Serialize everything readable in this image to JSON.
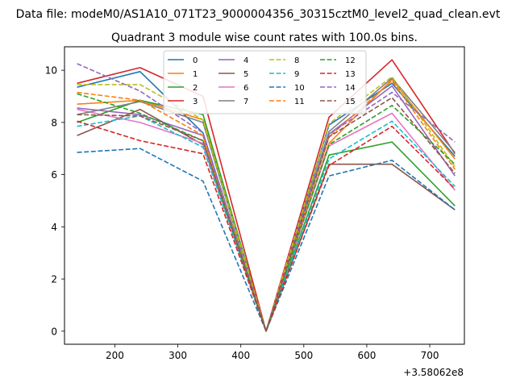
{
  "chart_data": {
    "type": "line",
    "suptitle": "Data file: modeM0/AS1A10_071T23_9000004356_30315cztM0_level2_quad_clean.evt",
    "title": "Quadrant 3 module wise count rates with 100.0s bins.",
    "xlabel": "",
    "ylabel": "",
    "x_offset_label": "+3.58062e8",
    "xlim": [
      120,
      755
    ],
    "ylim": [
      -0.5,
      10.9
    ],
    "xticks": [
      200,
      300,
      400,
      500,
      600,
      700
    ],
    "yticks": [
      0,
      2,
      4,
      6,
      8,
      10
    ],
    "x": [
      140,
      240,
      340,
      440,
      540,
      640,
      740
    ],
    "series": [
      {
        "name": "0",
        "color": "#1f77b4",
        "dash": false,
        "values": [
          9.35,
          9.95,
          7.6,
          0.0,
          7.9,
          9.5,
          6.7
        ]
      },
      {
        "name": "1",
        "color": "#ff7f0e",
        "dash": false,
        "values": [
          8.7,
          8.85,
          8.1,
          0.0,
          7.2,
          9.65,
          6.6
        ]
      },
      {
        "name": "2",
        "color": "#2ca02c",
        "dash": false,
        "values": [
          8.0,
          8.85,
          8.3,
          0.0,
          6.75,
          7.25,
          4.8
        ]
      },
      {
        "name": "3",
        "color": "#d62728",
        "dash": false,
        "values": [
          9.5,
          10.1,
          9.0,
          0.0,
          8.2,
          10.4,
          6.8
        ]
      },
      {
        "name": "4",
        "color": "#9467bd",
        "dash": false,
        "values": [
          8.55,
          8.3,
          7.5,
          0.0,
          7.55,
          9.4,
          5.95
        ]
      },
      {
        "name": "5",
        "color": "#8c564b",
        "dash": false,
        "values": [
          7.5,
          8.5,
          7.15,
          0.0,
          6.4,
          6.4,
          4.65
        ]
      },
      {
        "name": "6",
        "color": "#e377c2",
        "dash": false,
        "values": [
          8.5,
          8.0,
          7.2,
          0.0,
          7.1,
          8.35,
          5.4
        ]
      },
      {
        "name": "7",
        "color": "#7f7f7f",
        "dash": false,
        "values": [
          8.3,
          8.8,
          8.0,
          0.0,
          7.65,
          9.7,
          6.85
        ]
      },
      {
        "name": "8",
        "color": "#bcbd22",
        "dash": true,
        "values": [
          9.45,
          9.45,
          8.1,
          0.0,
          7.95,
          9.75,
          6.3
        ]
      },
      {
        "name": "9",
        "color": "#17becf",
        "dash": true,
        "values": [
          7.85,
          8.25,
          7.05,
          0.0,
          6.6,
          8.05,
          5.55
        ]
      },
      {
        "name": "10",
        "color": "#1f77b4",
        "dash": true,
        "values": [
          6.85,
          7.0,
          5.75,
          0.0,
          5.95,
          6.55,
          4.65
        ]
      },
      {
        "name": "11",
        "color": "#ff7f0e",
        "dash": true,
        "values": [
          9.15,
          8.85,
          7.5,
          0.0,
          7.45,
          9.6,
          6.2
        ]
      },
      {
        "name": "12",
        "color": "#2ca02c",
        "dash": true,
        "values": [
          9.1,
          8.35,
          7.3,
          0.0,
          7.15,
          8.65,
          6.4
        ]
      },
      {
        "name": "13",
        "color": "#d62728",
        "dash": true,
        "values": [
          8.05,
          7.3,
          6.8,
          0.0,
          6.35,
          7.85,
          5.45
        ]
      },
      {
        "name": "14",
        "color": "#9467bd",
        "dash": true,
        "values": [
          10.25,
          9.2,
          7.6,
          0.0,
          7.55,
          9.15,
          7.25
        ]
      },
      {
        "name": "15",
        "color": "#8c564b",
        "dash": true,
        "values": [
          8.3,
          8.25,
          7.3,
          0.0,
          7.45,
          8.95,
          6.05
        ]
      }
    ]
  }
}
